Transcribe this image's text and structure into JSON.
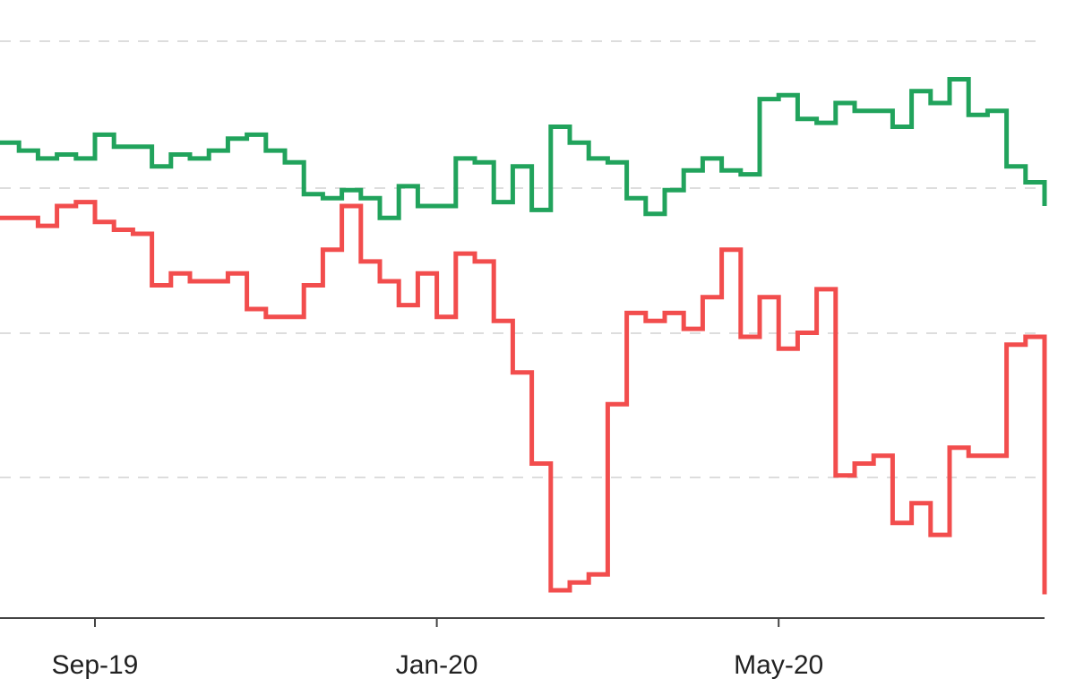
{
  "chart_data": {
    "type": "line",
    "step": true,
    "x_tick_labels": [
      "Sep-19",
      "Jan-20",
      "May-20"
    ],
    "x_ticks": [
      {
        "label": "Sep-19",
        "index": 5
      },
      {
        "label": "Jan-20",
        "index": 23
      },
      {
        "label": "May-20",
        "index": 41
      }
    ],
    "grid": true,
    "grid_style": "dashed-horizontal",
    "ylim": [
      0,
      7.8
    ],
    "colors": {
      "green_series": "#21a35c",
      "red_series": "#f24d4d",
      "grid": "#dddddd",
      "axis": "#444444"
    },
    "series": [
      {
        "color": "#21a35c",
        "values": [
          6.0,
          5.9,
          5.8,
          5.85,
          5.8,
          6.1,
          5.95,
          5.95,
          5.7,
          5.85,
          5.8,
          5.9,
          6.05,
          6.1,
          5.9,
          5.75,
          5.35,
          5.3,
          5.4,
          5.3,
          5.05,
          5.45,
          5.2,
          5.2,
          5.8,
          5.75,
          5.25,
          5.7,
          5.15,
          6.2,
          6.0,
          5.8,
          5.75,
          5.3,
          5.1,
          5.4,
          5.65,
          5.8,
          5.65,
          5.6,
          6.55,
          6.6,
          6.3,
          6.25,
          6.5,
          6.4,
          6.4,
          6.2,
          6.65,
          6.5,
          6.8,
          6.35,
          6.4,
          5.7,
          5.5,
          5.2
        ]
      },
      {
        "color": "#f24d4d",
        "values": [
          5.05,
          5.05,
          4.95,
          5.2,
          5.25,
          5.0,
          4.9,
          4.85,
          4.2,
          4.35,
          4.25,
          4.25,
          4.35,
          3.9,
          3.8,
          3.8,
          4.2,
          4.65,
          5.2,
          4.5,
          4.25,
          3.95,
          4.35,
          3.8,
          4.6,
          4.5,
          3.75,
          3.1,
          1.95,
          0.35,
          0.45,
          0.55,
          2.7,
          3.85,
          3.75,
          3.85,
          3.65,
          4.05,
          4.65,
          3.55,
          4.05,
          3.4,
          3.6,
          4.15,
          1.8,
          1.95,
          2.05,
          1.2,
          1.45,
          1.05,
          2.15,
          2.05,
          2.05,
          3.45,
          3.55,
          0.3
        ]
      }
    ]
  }
}
